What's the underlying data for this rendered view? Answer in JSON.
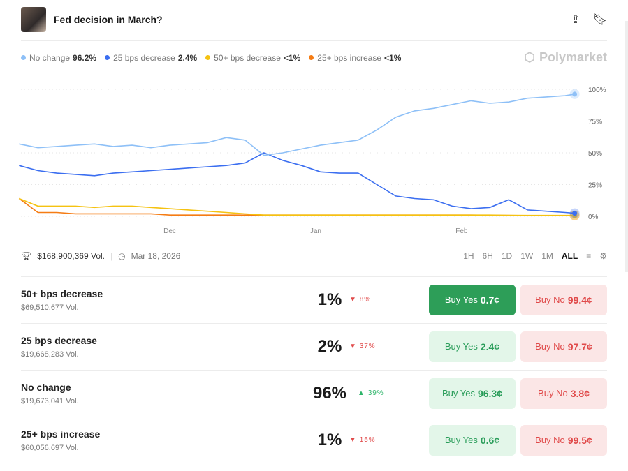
{
  "header": {
    "title": "Fed decision in March?",
    "icons": [
      "share-icon",
      "bookmark-icon"
    ]
  },
  "legend": [
    {
      "label": "No change",
      "value": "96.2%",
      "color": "#8ec0f7"
    },
    {
      "label": "25 bps decrease",
      "value": "2.4%",
      "color": "#3b6ef0"
    },
    {
      "label": "50+ bps decrease",
      "value": "<1%",
      "color": "#f5c211"
    },
    {
      "label": "25+ bps increase",
      "value": "<1%",
      "color": "#f57c14"
    }
  ],
  "brand": "Polymarket",
  "chart_data": {
    "type": "line",
    "x_unit": "days since Dec 1",
    "x": [
      -32,
      -28,
      -24,
      -20,
      -16,
      -12,
      -8,
      -4,
      0,
      4,
      8,
      12,
      16,
      20,
      24,
      28,
      32,
      36,
      40,
      44,
      48,
      52,
      56,
      60,
      64,
      68,
      72,
      76,
      80,
      84,
      86
    ],
    "xticks": [
      {
        "label": "Dec",
        "x": 0
      },
      {
        "label": "Jan",
        "x": 31
      },
      {
        "label": "Feb",
        "x": 62
      }
    ],
    "yticks": [
      "0%",
      "25%",
      "50%",
      "75%",
      "100%"
    ],
    "ylim": [
      0,
      100
    ],
    "grid": true,
    "series": [
      {
        "name": "No change",
        "color": "#8ec0f7",
        "values": [
          57,
          54,
          55,
          56,
          57,
          55,
          56,
          54,
          56,
          57,
          58,
          62,
          60,
          48,
          50,
          53,
          56,
          58,
          60,
          68,
          78,
          83,
          85,
          88,
          91,
          89,
          90,
          93,
          94,
          95,
          96.2
        ]
      },
      {
        "name": "25 bps decrease",
        "color": "#3b6ef0",
        "values": [
          40,
          36,
          34,
          33,
          32,
          34,
          35,
          36,
          37,
          38,
          39,
          40,
          42,
          50,
          44,
          40,
          35,
          34,
          34,
          25,
          16,
          14,
          13,
          8,
          6,
          7,
          13,
          5,
          4,
          3,
          2.4
        ]
      },
      {
        "name": "50+ bps decrease",
        "color": "#f5c211",
        "values": [
          14,
          8,
          8,
          8,
          7,
          8,
          8,
          7,
          6,
          5,
          4,
          3,
          2,
          1,
          1,
          1,
          1,
          1,
          1,
          1,
          1,
          1,
          1,
          1,
          1,
          1,
          0.8,
          0.7,
          0.7,
          0.7,
          0.7
        ]
      },
      {
        "name": "25+ bps increase",
        "color": "#f57c14",
        "values": [
          14,
          3,
          3,
          2,
          2,
          2,
          2,
          2,
          1,
          1,
          1,
          1,
          1,
          1,
          1,
          1,
          1,
          1,
          1,
          1,
          1,
          1,
          1,
          1,
          1,
          0.8,
          0.7,
          0.6,
          0.6,
          0.6,
          0.6
        ]
      }
    ]
  },
  "stats": {
    "volume": "$168,900,369 Vol.",
    "date": "Mar 18, 2026"
  },
  "ranges": [
    "1H",
    "6H",
    "1D",
    "1W",
    "1M",
    "ALL"
  ],
  "active_range": "ALL",
  "outcomes": [
    {
      "name": "50+ bps decrease",
      "vol": "$69,510,677 Vol.",
      "pct": "1%",
      "change": "8%",
      "dir": "down",
      "yes_label": "Buy Yes",
      "yes": "0.7¢",
      "no_label": "Buy No",
      "no": "99.4¢"
    },
    {
      "name": "25 bps decrease",
      "vol": "$19,668,283 Vol.",
      "pct": "2%",
      "change": "37%",
      "dir": "down",
      "yes_label": "Buy Yes",
      "yes": "2.4¢",
      "no_label": "Buy No",
      "no": "97.7¢"
    },
    {
      "name": "No change",
      "vol": "$19,673,041 Vol.",
      "pct": "96%",
      "change": "39%",
      "dir": "up",
      "yes_label": "Buy Yes",
      "yes": "96.3¢",
      "no_label": "Buy No",
      "no": "3.8¢"
    },
    {
      "name": "25+ bps increase",
      "vol": "$60,056,697 Vol.",
      "pct": "1%",
      "change": "15%",
      "dir": "down",
      "yes_label": "Buy Yes",
      "yes": "0.6¢",
      "no_label": "Buy No",
      "no": "99.5¢"
    }
  ]
}
